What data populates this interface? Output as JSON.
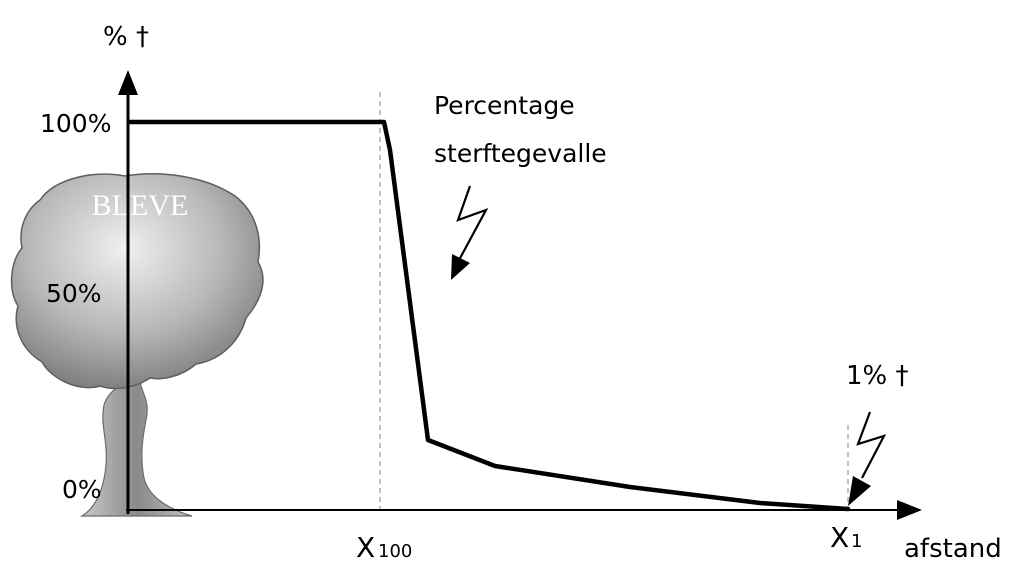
{
  "y_axis_title": "% †",
  "x_axis_title": "afstand",
  "y_ticks": {
    "top": "100%",
    "mid": "50%",
    "bottom": "0%"
  },
  "x_ticks": {
    "x100_main": "X",
    "x100_sub": "100",
    "x1_main": "X",
    "x1_sub": "1"
  },
  "cloud_label": "BLEVE",
  "annotation_curve": {
    "line1": "Percentage",
    "line2": "sterftegevalle"
  },
  "annotation_point": "1% †",
  "colors": {
    "line": "#000000",
    "dashed": "#9a9a9a",
    "cloud_dark": "#7a7a7a",
    "cloud_light": "#e6e6e6",
    "cloud_label": "#ffffff"
  },
  "chart_data": {
    "type": "line",
    "x_categories": [
      "",
      "X100",
      "",
      "",
      "",
      "X1"
    ],
    "y_percent": [
      100,
      100,
      18,
      12,
      6,
      1
    ],
    "ylim": [
      0,
      100
    ]
  }
}
